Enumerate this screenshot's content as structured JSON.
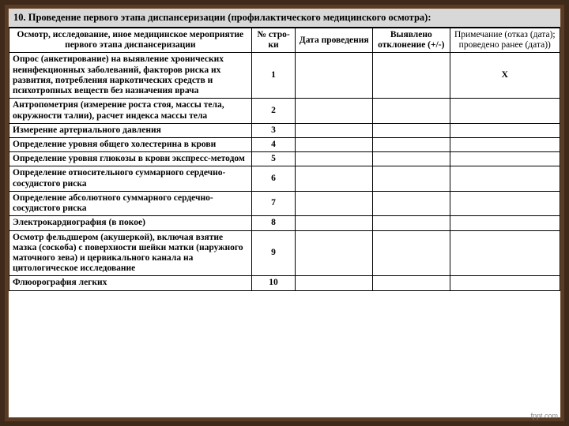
{
  "title": "10.  Проведение первого этапа диспансеризации (профилактического медицинского осмотра):",
  "headers": {
    "col1": "Осмотр, исследование, иное медицинское мероприятие первого этапа диспансеризации",
    "col2": "№ стро-ки",
    "col3": "Дата проведения",
    "col4": "Выявлено отклонение (+/-)",
    "col5": "Примечание (отказ (дата); проведено ранее (дата))"
  },
  "rows": [
    {
      "n": "1",
      "desc": "Опрос (анкетирование) на выявление хронических неинфекционных заболеваний, факторов риска их развития, потребления наркотических средств и психотропных веществ без назначения врача",
      "mark": "Х"
    },
    {
      "n": "2",
      "desc": "Антропометрия (измерение роста стоя, массы тела, окружности талии), расчет индекса массы тела",
      "mark": ""
    },
    {
      "n": "3",
      "desc": "Измерение артериального давления",
      "mark": ""
    },
    {
      "n": "4",
      "desc": "Определение уровня общего холестерина в крови",
      "mark": ""
    },
    {
      "n": "5",
      "desc": "Определение уровня глюкозы в крови экспресс-методом",
      "mark": ""
    },
    {
      "n": "6",
      "desc": "Определение относительного суммарного сердечно-сосудистого риска",
      "mark": ""
    },
    {
      "n": "7",
      "desc": "Определение абсолютного суммарного сердечно-сосудистого риска",
      "mark": ""
    },
    {
      "n": "8",
      "desc": "Электрокардиография (в покое)",
      "mark": ""
    },
    {
      "n": "9",
      "desc": "Осмотр фельдшером (акушеркой), включая взятие мазка (соскоба) с поверхности шейки матки (наружного маточного зева) и цервикального канала на цитологическое исследование",
      "mark": ""
    },
    {
      "n": "10",
      "desc": "Флюорография легких",
      "mark": ""
    }
  ],
  "footer": "fppt.com"
}
